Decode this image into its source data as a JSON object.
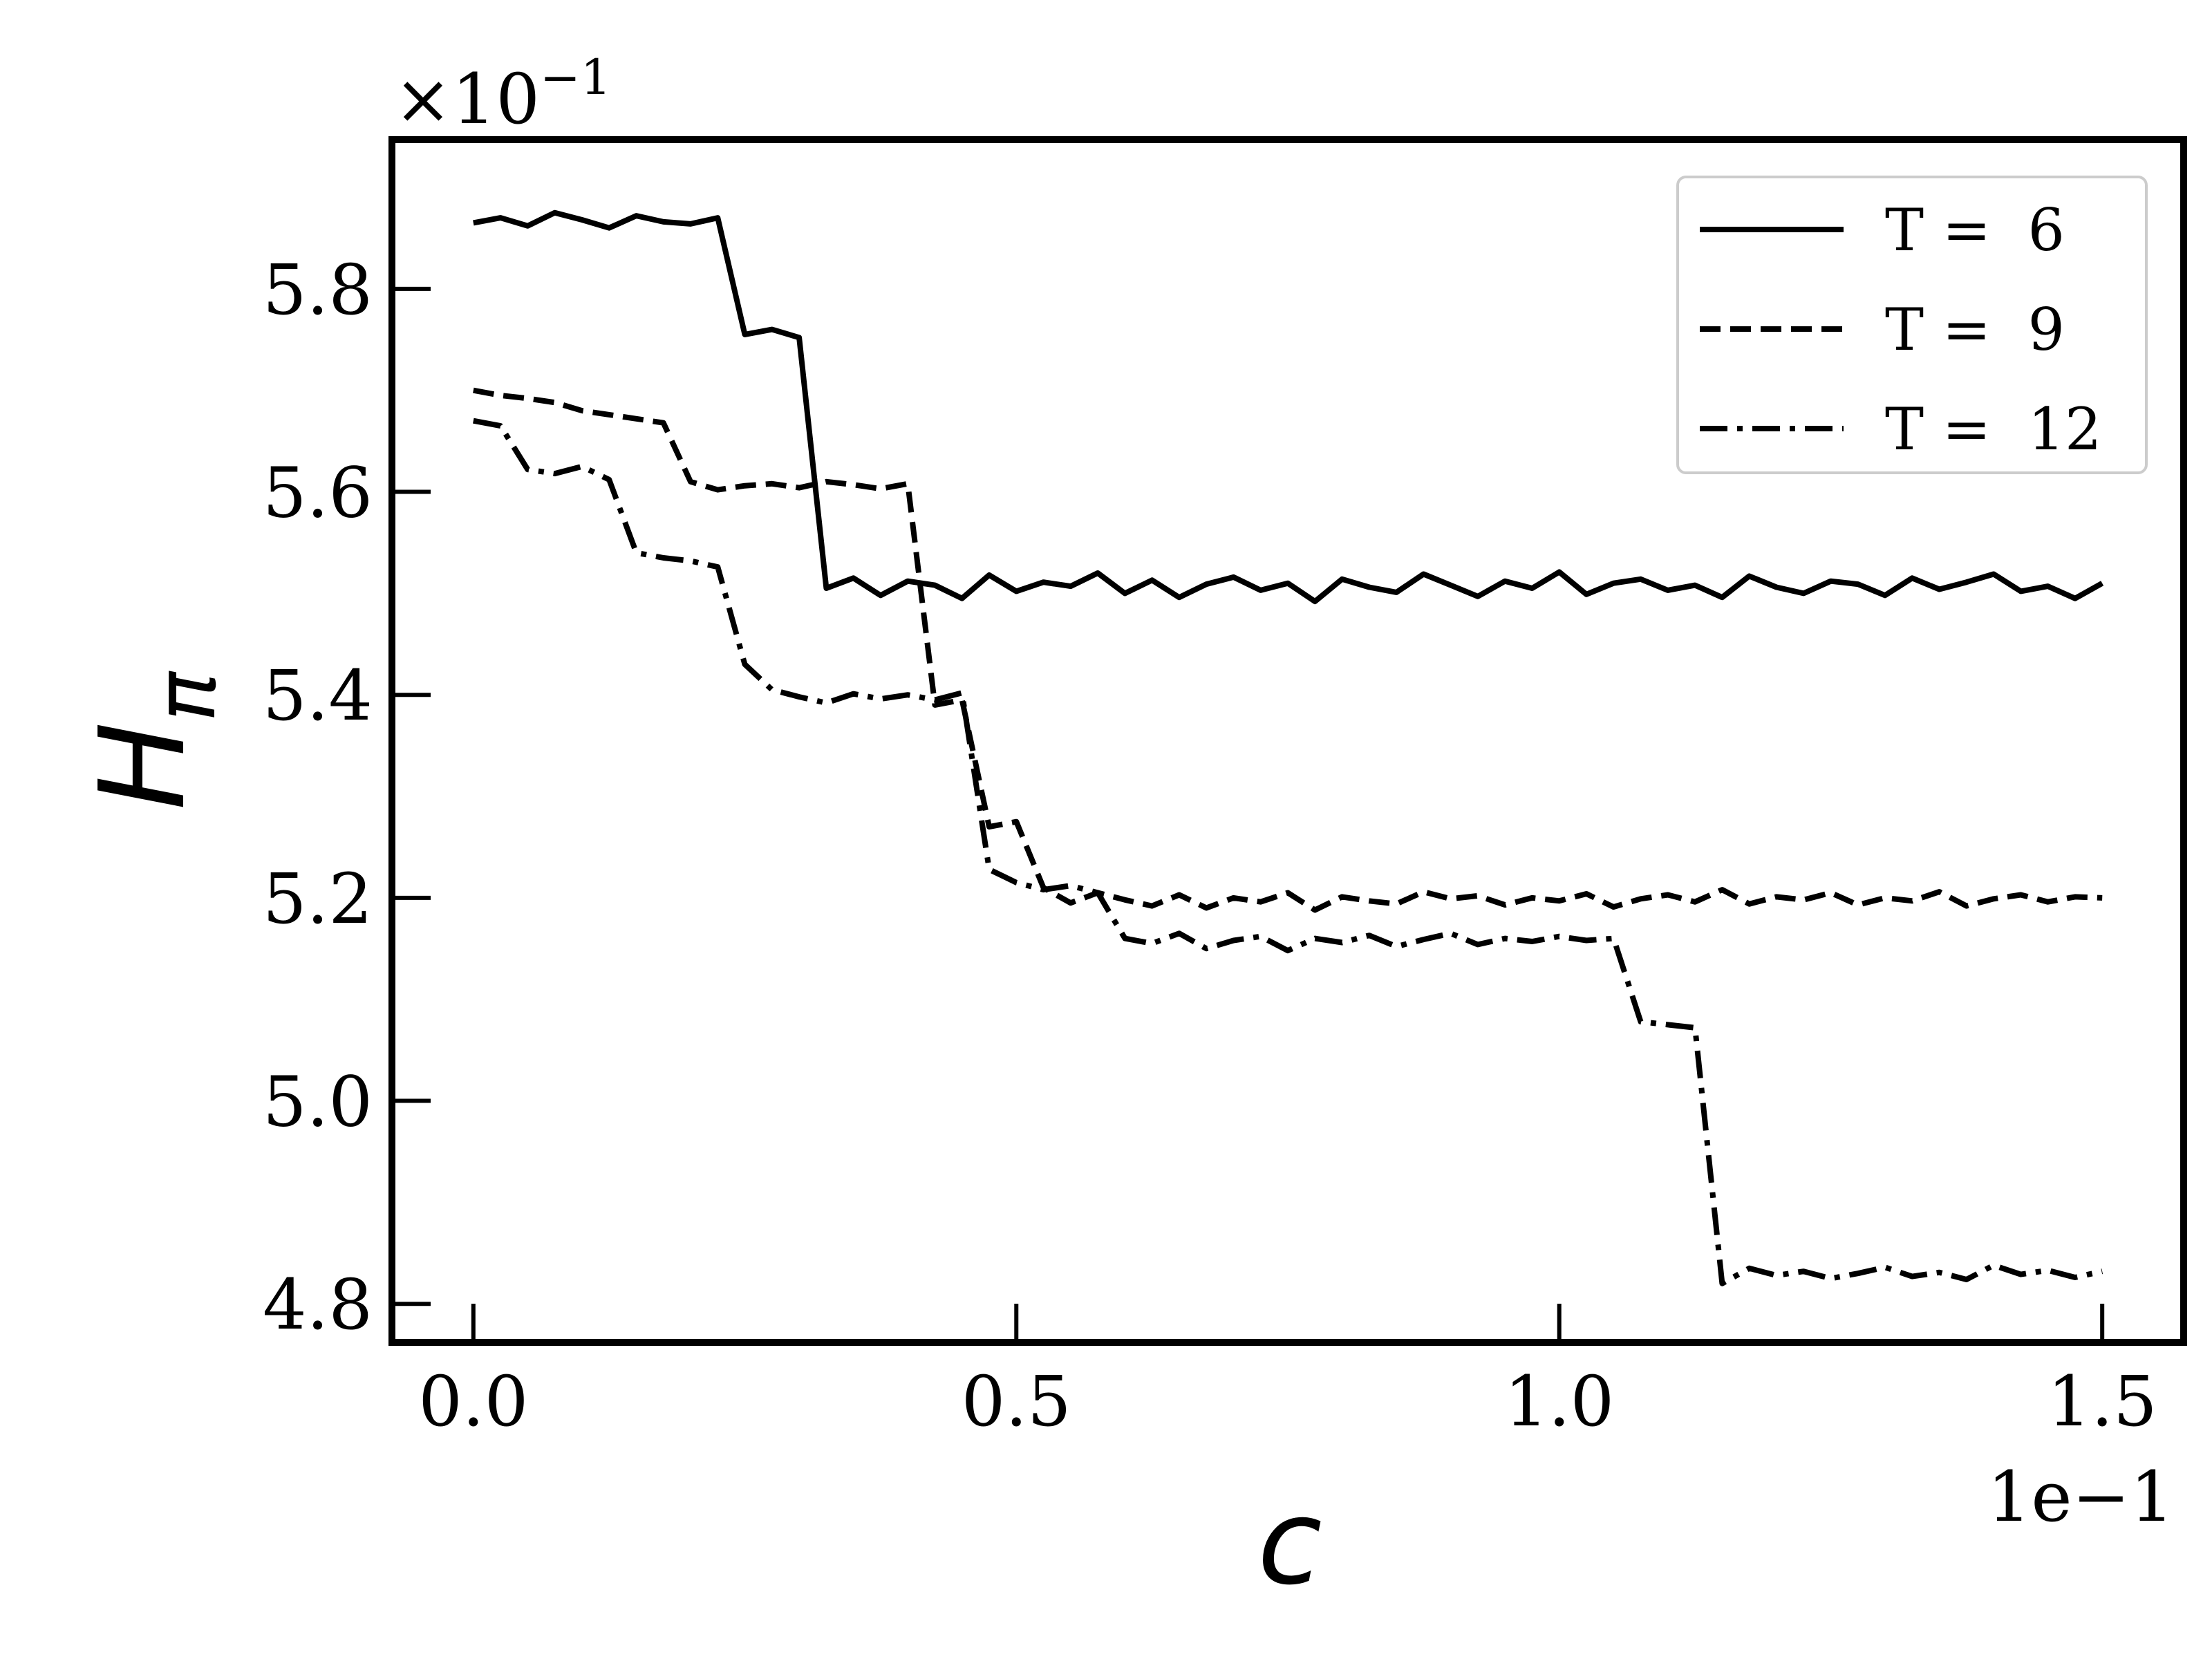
{
  "chart_data": {
    "type": "line",
    "x_label": "c",
    "y_label": "H",
    "y_label_sub": "π",
    "x_offset_label": "1e−1",
    "y_offset_base": "×10",
    "y_offset_exp": "−1",
    "xlim": [
      -0.075,
      1.575
    ],
    "ylim": [
      4.762,
      5.947
    ],
    "xticks": [
      {
        "value": 0,
        "label": "0.0"
      },
      0.5,
      {
        "value": 1,
        "label": "1.0"
      },
      1.5
    ],
    "yticks": [
      4.8,
      {
        "value": 5,
        "label": "5.0"
      },
      5.2,
      5.4,
      5.6,
      5.8
    ],
    "legend": "upper right",
    "x": [
      0,
      0.025,
      0.05,
      0.075,
      0.1,
      0.125,
      0.15,
      0.175,
      0.2,
      0.225,
      0.25,
      0.275,
      0.3,
      0.325,
      0.35,
      0.375,
      0.4,
      0.425,
      0.45,
      0.475,
      0.5,
      0.525,
      0.55,
      0.575,
      0.6,
      0.625,
      0.65,
      0.675,
      0.7,
      0.725,
      0.75,
      0.775,
      0.8,
      0.825,
      0.85,
      0.875,
      0.9,
      0.925,
      0.95,
      0.975,
      1,
      1.025,
      1.05,
      1.075,
      1.1,
      1.125,
      1.15,
      1.175,
      1.2,
      1.225,
      1.25,
      1.275,
      1.3,
      1.325,
      1.35,
      1.375,
      1.4,
      1.425,
      1.45,
      1.475,
      1.5
    ],
    "series": [
      {
        "name": "T =  6",
        "color": "#000000",
        "linestyle": "solid",
        "values": [
          5.865,
          5.87,
          5.862,
          5.875,
          5.868,
          5.86,
          5.872,
          5.866,
          5.864,
          5.87,
          5.755,
          5.76,
          5.752,
          5.505,
          5.515,
          5.498,
          5.512,
          5.508,
          5.495,
          5.518,
          5.502,
          5.511,
          5.507,
          5.52,
          5.5,
          5.513,
          5.496,
          5.509,
          5.516,
          5.503,
          5.51,
          5.492,
          5.514,
          5.506,
          5.501,
          5.519,
          5.508,
          5.497,
          5.512,
          5.505,
          5.521,
          5.499,
          5.51,
          5.514,
          5.503,
          5.508,
          5.496,
          5.517,
          5.506,
          5.5,
          5.512,
          5.509,
          5.498,
          5.515,
          5.504,
          5.511,
          5.519,
          5.502,
          5.507,
          5.495,
          5.51
        ]
      },
      {
        "name": "T =  9",
        "color": "#000000",
        "linestyle": "dashed",
        "values": [
          5.7,
          5.695,
          5.692,
          5.688,
          5.68,
          5.676,
          5.672,
          5.668,
          5.61,
          5.602,
          5.606,
          5.608,
          5.604,
          5.61,
          5.607,
          5.603,
          5.608,
          5.39,
          5.395,
          5.27,
          5.275,
          5.21,
          5.195,
          5.205,
          5.198,
          5.192,
          5.203,
          5.19,
          5.2,
          5.196,
          5.205,
          5.188,
          5.201,
          5.197,
          5.194,
          5.206,
          5.199,
          5.202,
          5.193,
          5.2,
          5.197,
          5.204,
          5.191,
          5.199,
          5.203,
          5.196,
          5.208,
          5.194,
          5.201,
          5.198,
          5.205,
          5.193,
          5.2,
          5.197,
          5.206,
          5.192,
          5.199,
          5.203,
          5.196,
          5.201,
          5.2
        ]
      },
      {
        "name": "T =  12",
        "color": "#000000",
        "linestyle": "dashdot",
        "values": [
          5.67,
          5.665,
          5.622,
          5.618,
          5.625,
          5.612,
          5.54,
          5.535,
          5.532,
          5.526,
          5.43,
          5.405,
          5.398,
          5.392,
          5.401,
          5.396,
          5.4,
          5.395,
          5.402,
          5.228,
          5.215,
          5.208,
          5.212,
          5.205,
          5.16,
          5.155,
          5.165,
          5.15,
          5.158,
          5.162,
          5.148,
          5.16,
          5.156,
          5.163,
          5.152,
          5.159,
          5.165,
          5.154,
          5.16,
          5.157,
          5.162,
          5.158,
          5.16,
          5.078,
          5.075,
          5.072,
          4.82,
          4.835,
          4.828,
          4.832,
          4.825,
          4.83,
          4.836,
          4.827,
          4.831,
          4.824,
          4.838,
          4.829,
          4.833,
          4.826,
          4.832
        ]
      }
    ]
  }
}
